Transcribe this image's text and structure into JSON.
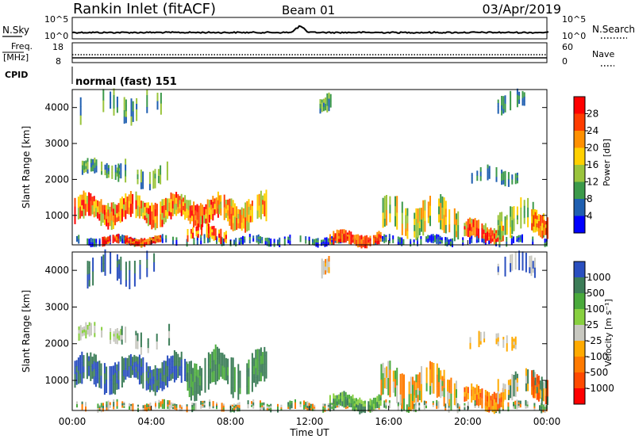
{
  "header": {
    "station": "Rankin Inlet (fitACF)",
    "beam": "Beam 01",
    "date": "03/Apr/2019"
  },
  "noise_panel": {
    "left_label": "N.Sky",
    "right_label": "N.Search",
    "ticks": [
      "10^5",
      "10^0"
    ]
  },
  "freq_panel": {
    "left_label_1": "Freq.",
    "left_label_2": "[MHz]",
    "left_ticks": [
      "18",
      "8"
    ],
    "right_label": "Nave",
    "right_ticks": [
      "60",
      "0"
    ]
  },
  "cpid_panel": {
    "label": "CPID",
    "mode": "normal (fast) 151"
  },
  "chart_data": [
    {
      "type": "heatmap",
      "quantity": "Power",
      "ylabel": "Slant Range [km]",
      "xlabel": "",
      "ylim": [
        180,
        4500
      ],
      "yticks": [
        1000,
        2000,
        3000,
        4000
      ],
      "colorbar": {
        "label": "Power [dB]",
        "ticks": [
          "28",
          "24",
          "20",
          "16",
          "12",
          "8",
          "4"
        ],
        "colors": [
          "#ff0000",
          "#ff3c00",
          "#ff9000",
          "#ffd000",
          "#9ac43c",
          "#3c9a4a",
          "#1f5fb0",
          "#0000ff"
        ]
      }
    },
    {
      "type": "heatmap",
      "quantity": "Velocity",
      "ylabel": "Slant Range [km]",
      "xlabel": "Time UT",
      "ylim": [
        180,
        4500
      ],
      "yticks": [
        1000,
        2000,
        3000,
        4000
      ],
      "xticks": [
        "00:00",
        "04:00",
        "08:00",
        "12:00",
        "16:00",
        "20:00",
        "00:00"
      ],
      "colorbar": {
        "label": "Velocity [m s⁻¹]",
        "ticks": [
          "1000",
          "500",
          "100",
          "25",
          "-25",
          "-100",
          "-500",
          "-1000"
        ],
        "colors": [
          "#2a4fbf",
          "#3c7d58",
          "#4aaa3c",
          "#88d040",
          "#c8c8c0",
          "#ffaa00",
          "#ff7a00",
          "#ff4a00",
          "#ff0000"
        ]
      }
    }
  ]
}
